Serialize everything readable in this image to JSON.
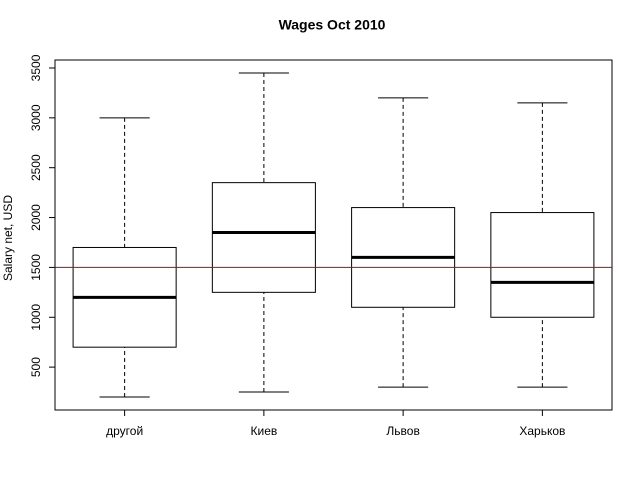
{
  "chart_data": {
    "type": "box",
    "title": "Wages Oct 2010",
    "y_label": "Salary net, USD",
    "categories": [
      "другой",
      "Киев",
      "Львов",
      "Харьков"
    ],
    "whisker_low": [
      200,
      250,
      300,
      300
    ],
    "q1": [
      700,
      1250,
      1100,
      1000
    ],
    "median": [
      1200,
      1850,
      1600,
      1350
    ],
    "q3": [
      1700,
      2350,
      2100,
      2050
    ],
    "whisker_high": [
      3000,
      3450,
      3200,
      3150
    ],
    "color": "#000000",
    "reference_line": 1500,
    "reference_line_color": "#cc0000",
    "ylim": [
      70,
      3580
    ],
    "yticks": [
      500,
      1000,
      1500,
      2000,
      2500,
      3000,
      3500
    ]
  }
}
